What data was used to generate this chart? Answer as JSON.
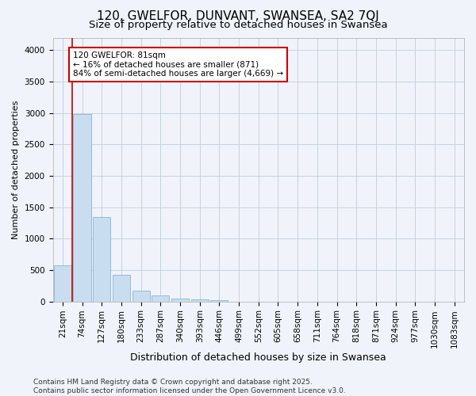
{
  "title": "120, GWELFOR, DUNVANT, SWANSEA, SA2 7QJ",
  "subtitle": "Size of property relative to detached houses in Swansea",
  "xlabel": "Distribution of detached houses by size in Swansea",
  "ylabel": "Number of detached properties",
  "bar_color": "#c8ddf0",
  "bar_edge_color": "#89b4d4",
  "categories": [
    "21sqm",
    "74sqm",
    "127sqm",
    "180sqm",
    "233sqm",
    "287sqm",
    "340sqm",
    "393sqm",
    "446sqm",
    "499sqm",
    "552sqm",
    "605sqm",
    "658sqm",
    "711sqm",
    "764sqm",
    "818sqm",
    "871sqm",
    "924sqm",
    "977sqm",
    "1030sqm",
    "1083sqm"
  ],
  "values": [
    580,
    2980,
    1340,
    420,
    175,
    90,
    45,
    30,
    15,
    0,
    0,
    0,
    0,
    0,
    0,
    0,
    0,
    0,
    0,
    0,
    0
  ],
  "ylim": [
    0,
    4200
  ],
  "yticks": [
    0,
    500,
    1000,
    1500,
    2000,
    2500,
    3000,
    3500,
    4000
  ],
  "vline_color": "#cc0000",
  "annotation_text": "120 GWELFOR: 81sqm\n← 16% of detached houses are smaller (871)\n84% of semi-detached houses are larger (4,669) →",
  "annotation_box_color": "#cc0000",
  "footer_line1": "Contains HM Land Registry data © Crown copyright and database right 2025.",
  "footer_line2": "Contains public sector information licensed under the Open Government Licence v3.0.",
  "background_color": "#f0f4fa",
  "plot_bg_color": "#f0f4fa",
  "title_fontsize": 11,
  "subtitle_fontsize": 9.5,
  "xlabel_fontsize": 9,
  "ylabel_fontsize": 8,
  "tick_fontsize": 7.5,
  "footer_fontsize": 6.5
}
